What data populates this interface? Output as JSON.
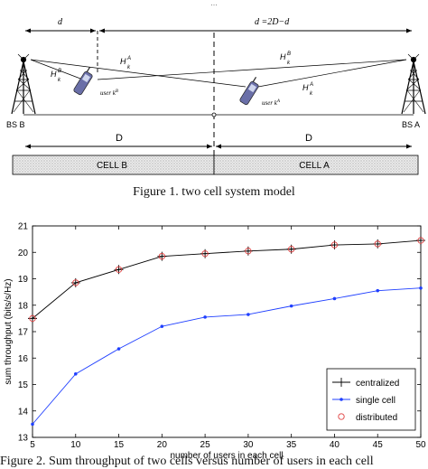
{
  "figure1": {
    "caption": "Figure 1.   two cell system model",
    "top_truncated_text": "...",
    "distances": {
      "d_left": "d",
      "d_right": "d =2D−d"
    },
    "channels": {
      "hbb": "H",
      "hbb_sup": "B",
      "hbb_sub": "k",
      "hba": "H",
      "hba_sup": "A",
      "hba_sub": "k",
      "hab": "H",
      "hab_sup": "B",
      "hab_sub": "k",
      "haa": "H",
      "haa_sup": "A",
      "haa_sub": "k"
    },
    "users": {
      "user_b": "user k",
      "user_b_sup": "B",
      "user_a": "user k",
      "user_a_sup": "A"
    },
    "base_stations": {
      "left": "BS B",
      "right": "BS A"
    },
    "cell_radius": {
      "left": "D",
      "right": "D"
    },
    "cells": {
      "left": "CELL B",
      "right": "CELL A"
    }
  },
  "figure2": {
    "caption": "Figure 2.   Sum throughput of two cells versus number of users in each cell"
  },
  "chart_data": {
    "type": "line",
    "xlabel": "number of users in each cell",
    "ylabel": "sum throughput (bits/s/Hz)",
    "xlim": [
      5,
      50
    ],
    "ylim": [
      13,
      21
    ],
    "xticks": [
      5,
      10,
      15,
      20,
      25,
      30,
      35,
      40,
      45,
      50
    ],
    "yticks": [
      13,
      14,
      15,
      16,
      17,
      18,
      19,
      20,
      21
    ],
    "grid": false,
    "legend_position": "bottom-right",
    "x": [
      5,
      10,
      15,
      20,
      25,
      30,
      35,
      40,
      45,
      50
    ],
    "series": [
      {
        "name": "centralized",
        "color": "#000000",
        "marker": "plus",
        "values": [
          17.5,
          18.85,
          19.35,
          19.85,
          19.95,
          20.05,
          20.12,
          20.28,
          20.32,
          20.45
        ]
      },
      {
        "name": "single cell",
        "color": "#1f3fff",
        "marker": "dot",
        "values": [
          13.5,
          15.4,
          16.35,
          17.2,
          17.55,
          17.65,
          17.97,
          18.25,
          18.55,
          18.65
        ]
      },
      {
        "name": "distributed",
        "color": "#e04040",
        "marker": "circle",
        "values": [
          17.5,
          18.85,
          19.35,
          19.85,
          19.95,
          20.05,
          20.12,
          20.28,
          20.32,
          20.45
        ]
      }
    ]
  }
}
